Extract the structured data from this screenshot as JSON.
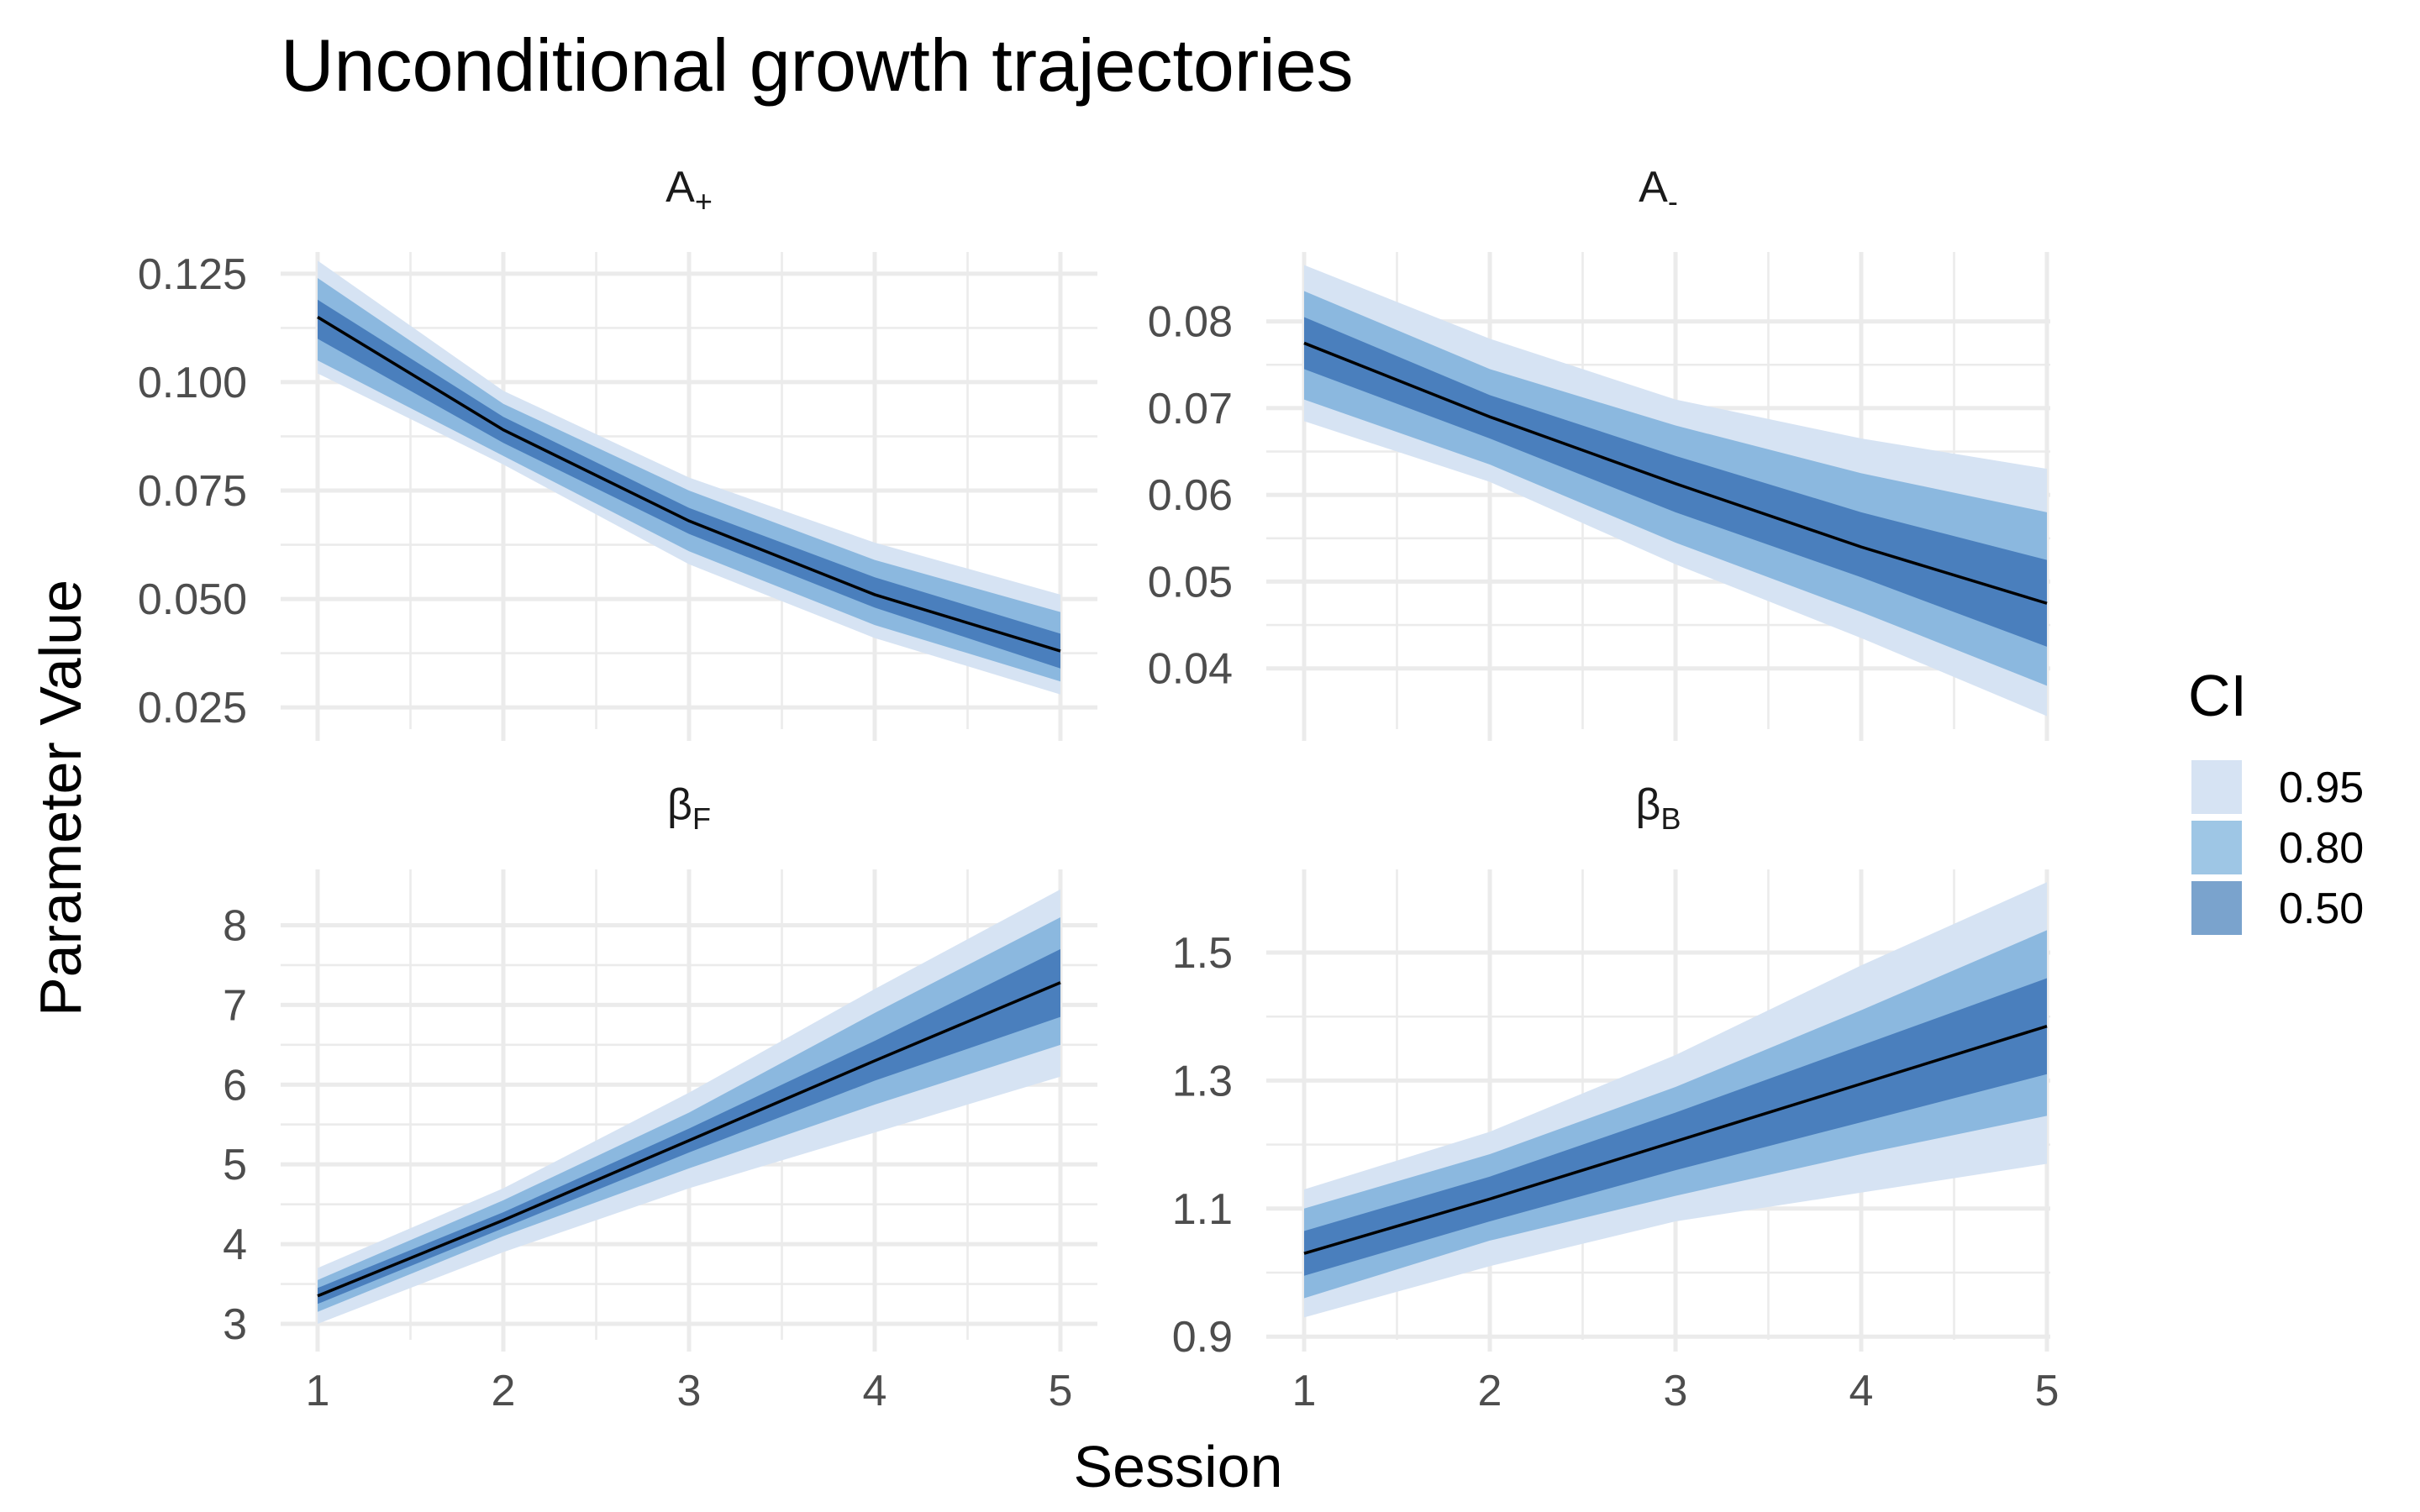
{
  "title": "Unconditional growth trajectories",
  "x_axis_title": "Session",
  "y_axis_title": "Parameter Value",
  "legend": {
    "title": "CI",
    "items": [
      {
        "label": "0.95",
        "color": "#d6e3f3"
      },
      {
        "label": "0.80",
        "color": "#9ec6e5"
      },
      {
        "label": "0.50",
        "color": "#7aa3cd"
      }
    ]
  },
  "colors": {
    "band_95": "#d6e3f3",
    "band_80": "#8bb8df",
    "band_50": "#4a7fbd",
    "mean_line": "#000000",
    "grid": "#ebebeb",
    "tick_text": "#4d4d4d"
  },
  "chart_data": {
    "type": "area",
    "facet_layout": "2x2",
    "x_ticks": [
      1,
      2,
      3,
      4,
      5
    ],
    "legend_position": "right",
    "grid": true,
    "panels": [
      {
        "strip": {
          "base": "A",
          "sub": "+"
        },
        "ylim": [
          0.02,
          0.13
        ],
        "y_ticks": [
          0.025,
          0.05,
          0.075,
          0.1,
          0.125
        ],
        "y_tick_labels": [
          "0.025",
          "0.050",
          "0.075",
          "0.100",
          "0.125"
        ],
        "x": [
          1,
          2,
          3,
          4,
          5
        ],
        "mean": [
          0.115,
          0.089,
          0.068,
          0.051,
          0.038
        ],
        "ci95_low": [
          0.102,
          0.081,
          0.058,
          0.041,
          0.028
        ],
        "ci95_high": [
          0.128,
          0.098,
          0.078,
          0.063,
          0.051
        ],
        "ci80_low": [
          0.105,
          0.083,
          0.061,
          0.044,
          0.031
        ],
        "ci80_high": [
          0.124,
          0.095,
          0.075,
          0.059,
          0.047
        ],
        "ci50_low": [
          0.11,
          0.086,
          0.065,
          0.048,
          0.034
        ],
        "ci50_high": [
          0.119,
          0.092,
          0.071,
          0.055,
          0.042
        ]
      },
      {
        "strip": {
          "base": "A",
          "sub": "-"
        },
        "ylim": [
          0.033,
          0.088
        ],
        "y_ticks": [
          0.04,
          0.05,
          0.06,
          0.07,
          0.08
        ],
        "y_tick_labels": [
          "0.04",
          "0.05",
          "0.06",
          "0.07",
          "0.08"
        ],
        "x": [
          1,
          2,
          3,
          4,
          5
        ],
        "mean": [
          0.0775,
          0.069,
          0.0613,
          0.054,
          0.0475
        ],
        "ci95_low": [
          0.0685,
          0.0615,
          0.052,
          0.0435,
          0.0345
        ],
        "ci95_high": [
          0.0865,
          0.078,
          0.071,
          0.0665,
          0.063
        ],
        "ci80_low": [
          0.071,
          0.0635,
          0.0545,
          0.0465,
          0.038
        ],
        "ci80_high": [
          0.0835,
          0.0745,
          0.068,
          0.0625,
          0.058
        ],
        "ci50_low": [
          0.0745,
          0.0665,
          0.058,
          0.0505,
          0.0425
        ],
        "ci50_high": [
          0.0805,
          0.0715,
          0.0645,
          0.058,
          0.0525
        ]
      },
      {
        "strip": {
          "base": "βF",
          "sub": ""
        },
        "ylim": [
          2.8,
          8.7
        ],
        "y_ticks": [
          3,
          4,
          5,
          6,
          7,
          8
        ],
        "y_tick_labels": [
          "3",
          "4",
          "5",
          "6",
          "7",
          "8"
        ],
        "x": [
          1,
          2,
          3,
          4,
          5
        ],
        "mean": [
          3.35,
          4.3,
          5.3,
          6.3,
          7.28
        ],
        "ci95_low": [
          3.0,
          3.9,
          4.7,
          5.4,
          6.1
        ],
        "ci95_high": [
          3.7,
          4.7,
          5.9,
          7.2,
          8.45
        ],
        "ci80_low": [
          3.15,
          4.1,
          4.95,
          5.75,
          6.5
        ],
        "ci80_high": [
          3.55,
          4.55,
          5.65,
          6.9,
          8.1
        ],
        "ci50_low": [
          3.25,
          4.2,
          5.15,
          6.05,
          6.85
        ],
        "ci50_high": [
          3.45,
          4.4,
          5.45,
          6.55,
          7.7
        ]
      },
      {
        "strip": {
          "base": "βB",
          "sub": ""
        },
        "ylim": [
          0.895,
          1.63
        ],
        "y_ticks": [
          0.9,
          1.1,
          1.3,
          1.5
        ],
        "y_tick_labels": [
          "0.9",
          "1.1",
          "1.3",
          "1.5"
        ],
        "x": [
          1,
          2,
          3,
          4,
          5
        ],
        "mean": [
          1.03,
          1.115,
          1.205,
          1.295,
          1.385
        ],
        "ci95_low": [
          0.93,
          1.01,
          1.08,
          1.125,
          1.17
        ],
        "ci95_high": [
          1.13,
          1.22,
          1.34,
          1.48,
          1.61
        ],
        "ci80_low": [
          0.96,
          1.05,
          1.12,
          1.185,
          1.245
        ],
        "ci80_high": [
          1.1,
          1.185,
          1.29,
          1.41,
          1.535
        ],
        "ci50_low": [
          0.995,
          1.08,
          1.16,
          1.235,
          1.31
        ],
        "ci50_high": [
          1.065,
          1.15,
          1.25,
          1.355,
          1.46
        ]
      }
    ]
  }
}
